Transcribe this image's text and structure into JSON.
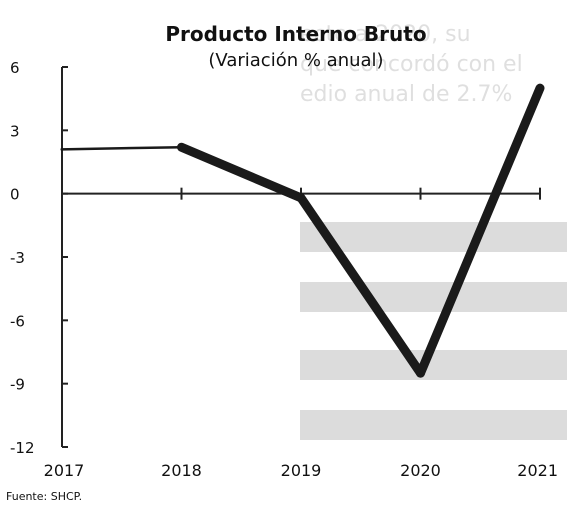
{
  "chart_data": {
    "type": "line",
    "title": "Producto Interno Bruto",
    "subtitle": "(Variación % anual)",
    "x": [
      "2017",
      "2018",
      "2019",
      "2020",
      "2021"
    ],
    "series": [
      {
        "values": [
          2.1,
          2.2,
          -0.2,
          -8.5,
          5.0
        ]
      }
    ],
    "yticks": [
      6,
      3,
      0,
      -3,
      -6,
      -9,
      -12
    ],
    "ylim": [
      -12,
      6
    ],
    "grid": false,
    "source": "Fuente: SHCP.",
    "colors": {
      "line": "#1a1a1a",
      "axis": "#222222"
    }
  }
}
